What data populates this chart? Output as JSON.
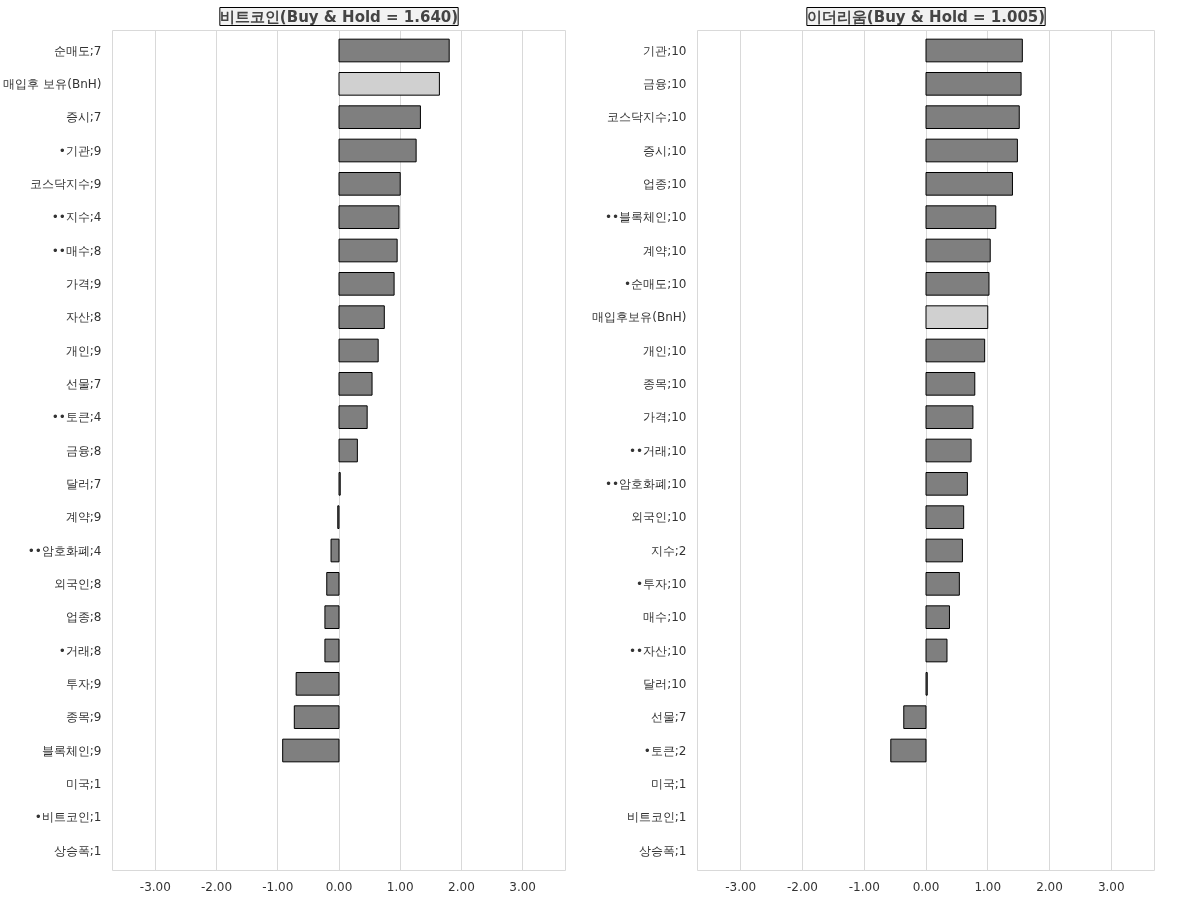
{
  "chart_data": [
    {
      "type": "bar",
      "orientation": "horizontal",
      "title": "비트코인(Buy & Hold = 1.640)",
      "categories": [
        "순매도;7",
        "매입후 보유(BnH)",
        "증시;7",
        "•기관;9",
        "코스닥지수;9",
        "••지수;4",
        "••매수;8",
        "가격;9",
        "자산;8",
        "개인;9",
        "선물;7",
        "••토큰;4",
        "금융;8",
        "달러;7",
        "계약;9",
        "••암호화폐;4",
        "외국인;8",
        "업종;8",
        "•거래;8",
        "투자;9",
        "종목;9",
        "블록체인;9",
        "미국;1",
        "•비트코인;1",
        "상승폭;1"
      ],
      "values": [
        1.8,
        1.64,
        1.33,
        1.26,
        1.0,
        0.98,
        0.95,
        0.9,
        0.74,
        0.64,
        0.54,
        0.46,
        0.3,
        0.02,
        -0.02,
        -0.13,
        -0.2,
        -0.23,
        -0.23,
        -0.7,
        -0.73,
        -0.92,
        null,
        null,
        null
      ],
      "colors": [
        "#7f7f7f",
        "#d0d0d0",
        "#7f7f7f",
        "#7f7f7f",
        "#7f7f7f",
        "#7f7f7f",
        "#7f7f7f",
        "#7f7f7f",
        "#7f7f7f",
        "#7f7f7f",
        "#7f7f7f",
        "#7f7f7f",
        "#7f7f7f",
        "#7f7f7f",
        "#7f7f7f",
        "#7f7f7f",
        "#7f7f7f",
        "#7f7f7f",
        "#7f7f7f",
        "#7f7f7f",
        "#7f7f7f",
        "#7f7f7f",
        "#7f7f7f",
        "#7f7f7f",
        "#7f7f7f"
      ],
      "xlim": [
        -3.7,
        3.7
      ],
      "xticks": [
        {
          "value": -3,
          "label": "-3.00"
        },
        {
          "value": -2,
          "label": "-2.00"
        },
        {
          "value": -1,
          "label": "-1.00"
        },
        {
          "value": 0,
          "label": "0.00"
        },
        {
          "value": 1,
          "label": "1.00"
        },
        {
          "value": 2,
          "label": "2.00"
        },
        {
          "value": 3,
          "label": "3.00"
        }
      ],
      "grid": "x"
    },
    {
      "type": "bar",
      "orientation": "horizontal",
      "title": "이더리움(Buy & Hold = 1.005)",
      "categories": [
        "기관;10",
        "금융;10",
        "코스닥지수;10",
        "증시;10",
        "업종;10",
        "••블록체인;10",
        "계약;10",
        "•순매도;10",
        "매입후보유(BnH)",
        "개인;10",
        "종목;10",
        "가격;10",
        "••거래;10",
        "••암호화폐;10",
        "외국인;10",
        "지수;2",
        "•투자;10",
        "매수;10",
        "••자산;10",
        "달러;10",
        "선물;7",
        "•토큰;2",
        "미국;1",
        "비트코인;1",
        "상승폭;1"
      ],
      "values": [
        1.56,
        1.54,
        1.51,
        1.48,
        1.4,
        1.13,
        1.04,
        1.02,
        1.0,
        0.95,
        0.79,
        0.76,
        0.73,
        0.67,
        0.61,
        0.59,
        0.54,
        0.38,
        0.34,
        0.02,
        -0.36,
        -0.57,
        null,
        null,
        null
      ],
      "colors": [
        "#7f7f7f",
        "#7f7f7f",
        "#7f7f7f",
        "#7f7f7f",
        "#7f7f7f",
        "#7f7f7f",
        "#7f7f7f",
        "#7f7f7f",
        "#d0d0d0",
        "#7f7f7f",
        "#7f7f7f",
        "#7f7f7f",
        "#7f7f7f",
        "#7f7f7f",
        "#7f7f7f",
        "#7f7f7f",
        "#7f7f7f",
        "#7f7f7f",
        "#7f7f7f",
        "#7f7f7f",
        "#7f7f7f",
        "#7f7f7f",
        "#7f7f7f",
        "#7f7f7f",
        "#7f7f7f"
      ],
      "xlim": [
        -3.7,
        3.7
      ],
      "xticks": [
        {
          "value": -3,
          "label": "-3.00"
        },
        {
          "value": -2,
          "label": "-2.00"
        },
        {
          "value": -1,
          "label": "-1.00"
        },
        {
          "value": 0,
          "label": "0.00"
        },
        {
          "value": 1,
          "label": "1.00"
        },
        {
          "value": 2,
          "label": "2.00"
        },
        {
          "value": 3,
          "label": "3.00"
        }
      ],
      "grid": "x"
    }
  ]
}
